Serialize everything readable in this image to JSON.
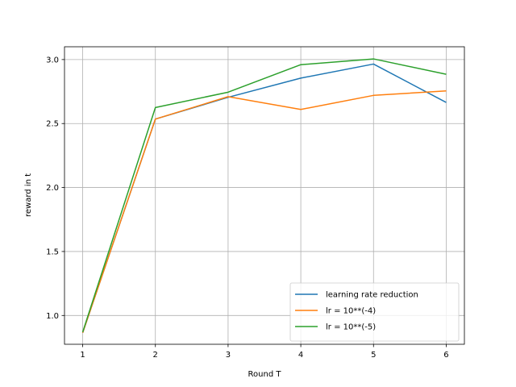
{
  "chart_data": {
    "type": "line",
    "title": "",
    "xlabel": "Round T",
    "ylabel": "reward in t",
    "x": [
      1,
      2,
      3,
      4,
      5,
      6
    ],
    "xlim": [
      0.75,
      6.25
    ],
    "ylim": [
      0.775,
      3.1
    ],
    "xticks": [
      "1",
      "2",
      "3",
      "4",
      "5",
      "6"
    ],
    "yticks": [
      "1.0",
      "1.5",
      "2.0",
      "2.5",
      "3.0"
    ],
    "grid": true,
    "legend_position": "bottom-right",
    "series": [
      {
        "name": "learning rate reduction",
        "color": "#1f77b4",
        "values": [
          0.865,
          2.535,
          2.705,
          2.855,
          2.965,
          2.665
        ]
      },
      {
        "name": "lr = 10**(-4)",
        "color": "#ff7f0e",
        "values": [
          0.865,
          2.535,
          2.71,
          2.61,
          2.72,
          2.755
        ]
      },
      {
        "name": "lr = 10**(-5)",
        "color": "#2ca02c",
        "values": [
          0.87,
          2.625,
          2.745,
          2.96,
          3.005,
          2.885
        ]
      }
    ]
  }
}
